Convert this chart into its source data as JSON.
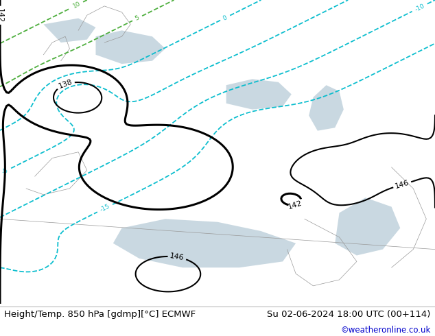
{
  "title_left": "Height/Temp. 850 hPa [gdmp][°C] ECMWF",
  "title_right": "Su 02-06-2024 18:00 UTC (00+114)",
  "credit": "©weatheronline.co.uk",
  "land_color": "#b8e8a0",
  "sea_color": "#c8dce0",
  "bg_color": "#d8ecd0",
  "bottom_bar_color": "#ffffff",
  "text_color": "#000000",
  "credit_color": "#0000cc",
  "font_size_title": 9.5,
  "font_size_credit": 8.5
}
